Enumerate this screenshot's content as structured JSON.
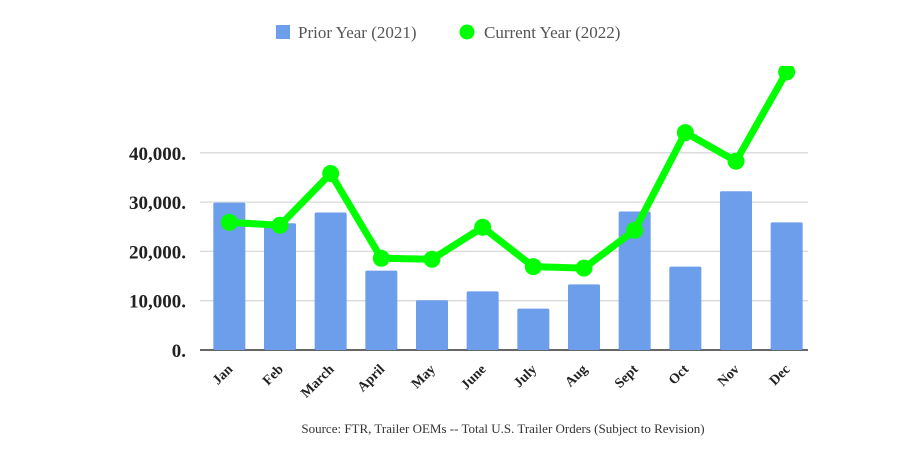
{
  "chart_data": {
    "type": "bar+line",
    "title": "",
    "xlabel": "",
    "ylabel": "",
    "categories": [
      "Jan",
      "Feb",
      "March",
      "April",
      "May",
      "June",
      "July",
      "Aug",
      "Sept",
      "Oct",
      "Nov",
      "Dec"
    ],
    "series": [
      {
        "name": "Prior Year (2021)",
        "type": "bar",
        "color": "#6d9eeb",
        "values": [
          29900,
          25700,
          27900,
          16100,
          10100,
          11900,
          8400,
          13300,
          28100,
          16900,
          32200,
          25900
        ]
      },
      {
        "name": "Current Year (2022)",
        "type": "line",
        "color": "#00ff00",
        "values": [
          25900,
          25300,
          35800,
          18600,
          18400,
          24900,
          16900,
          16600,
          24300,
          44100,
          38300,
          56400
        ]
      }
    ],
    "yticks": [
      0,
      10000,
      20000,
      30000,
      40000
    ],
    "ytick_labels": [
      "0.",
      "10,000.",
      "20,000.",
      "30,000.",
      "40,000."
    ],
    "ylim": [
      0,
      57000
    ],
    "grid": true,
    "legend_position": "top",
    "source": "Source: FTR, Trailer OEMs -- Total U.S. Trailer Orders (Subject to Revision)"
  }
}
